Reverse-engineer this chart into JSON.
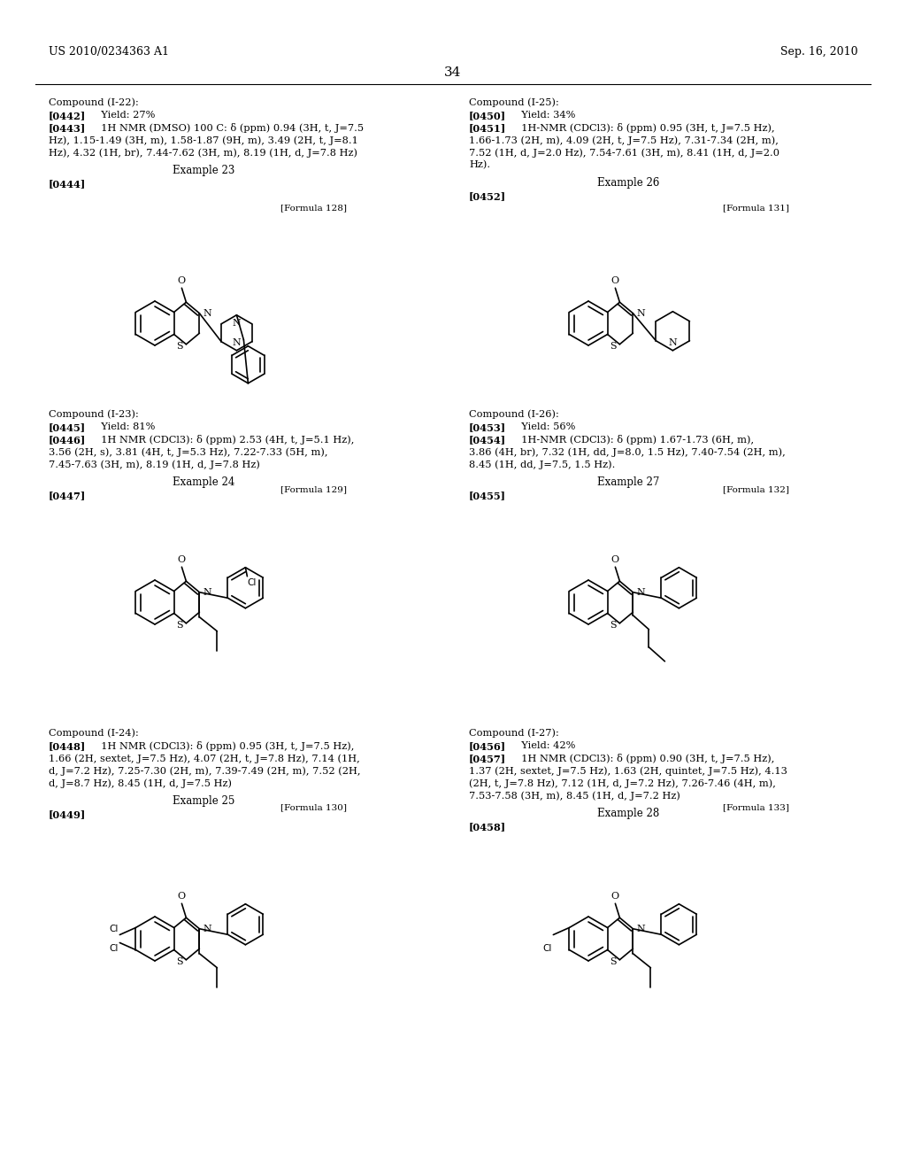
{
  "header_left": "US 2010/0234363 A1",
  "header_right": "Sep. 16, 2010",
  "page_num": "34",
  "background": "#ffffff"
}
